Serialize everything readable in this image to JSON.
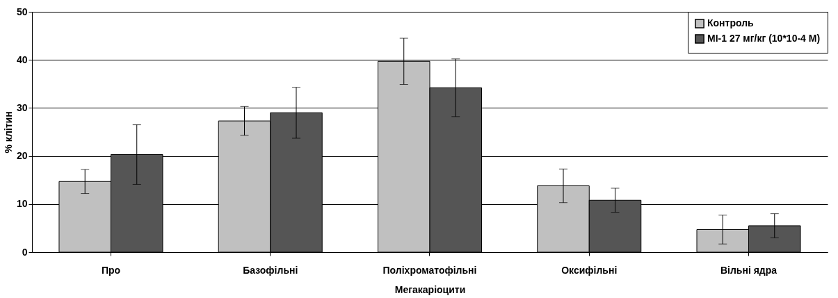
{
  "chart_data": {
    "type": "bar",
    "xlabel": "Мегакаріоцити",
    "ylabel": "% клітин",
    "categories": [
      "Про",
      "Базофільні",
      "Поліхроматофільні",
      "Оксифільні",
      "Вільні ядра"
    ],
    "series": [
      {
        "name": "Контроль",
        "color": "#c0c0c0",
        "values": [
          14.7,
          27.3,
          39.7,
          13.8,
          4.7
        ],
        "errors": [
          2.5,
          3,
          4.8,
          3.5,
          3
        ]
      },
      {
        "name": "МІ-1 27 мг/кг (10*10-4 М)",
        "color": "#555555",
        "values": [
          20.3,
          29,
          34.2,
          10.8,
          5.5
        ],
        "errors": [
          6.2,
          5.3,
          6,
          2.5,
          2.5
        ]
      }
    ],
    "ylim": [
      0,
      50
    ],
    "yticks": [
      0,
      10,
      20,
      30,
      40,
      50
    ],
    "grid": "y",
    "legend": "top right"
  }
}
